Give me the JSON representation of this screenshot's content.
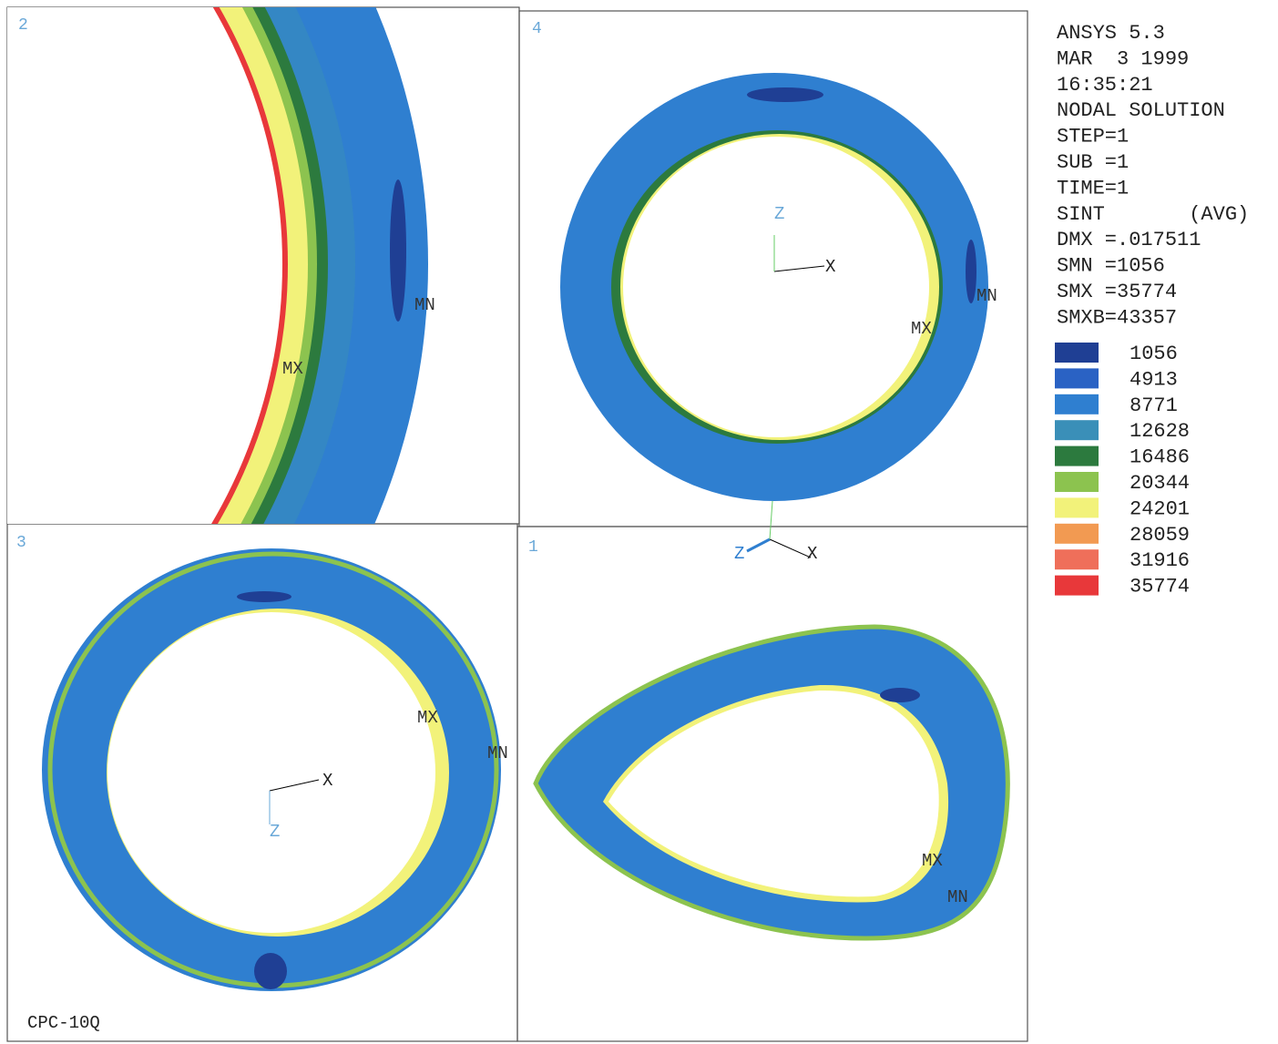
{
  "header": {
    "lines": [
      "ANSYS 5.3",
      "MAR  3 1999",
      "16:35:21",
      "NODAL SOLUTION",
      "STEP=1",
      "SUB =1",
      "TIME=1",
      "SINT       (AVG)",
      "DMX =.017511",
      "SMN =1056",
      "SMX =35774",
      "SMXB=43357"
    ]
  },
  "legend": [
    {
      "value": 1056,
      "color": "#1f3f94"
    },
    {
      "value": 4913,
      "color": "#2a62c4"
    },
    {
      "value": 8771,
      "color": "#2f7fd0"
    },
    {
      "value": 12628,
      "color": "#3a8fb8"
    },
    {
      "value": 16486,
      "color": "#2c7a3e"
    },
    {
      "value": 20344,
      "color": "#8cc34f"
    },
    {
      "value": 24201,
      "color": "#f2f27a"
    },
    {
      "value": 28059,
      "color": "#f29a52"
    },
    {
      "value": 31916,
      "color": "#ef6f5a"
    },
    {
      "value": 35774,
      "color": "#e8383a"
    }
  ],
  "viewports": [
    {
      "number": "2",
      "labels": [
        "MN",
        "MX"
      ]
    },
    {
      "number": "4",
      "labels": [
        "MN",
        "MX",
        "Z",
        "X"
      ]
    },
    {
      "number": "3",
      "labels": [
        "MX",
        "MN",
        "X",
        "Z"
      ]
    },
    {
      "number": "1",
      "labels": [
        "Z",
        "X",
        "MX",
        "MN"
      ]
    }
  ],
  "footer": "CPC-10Q"
}
